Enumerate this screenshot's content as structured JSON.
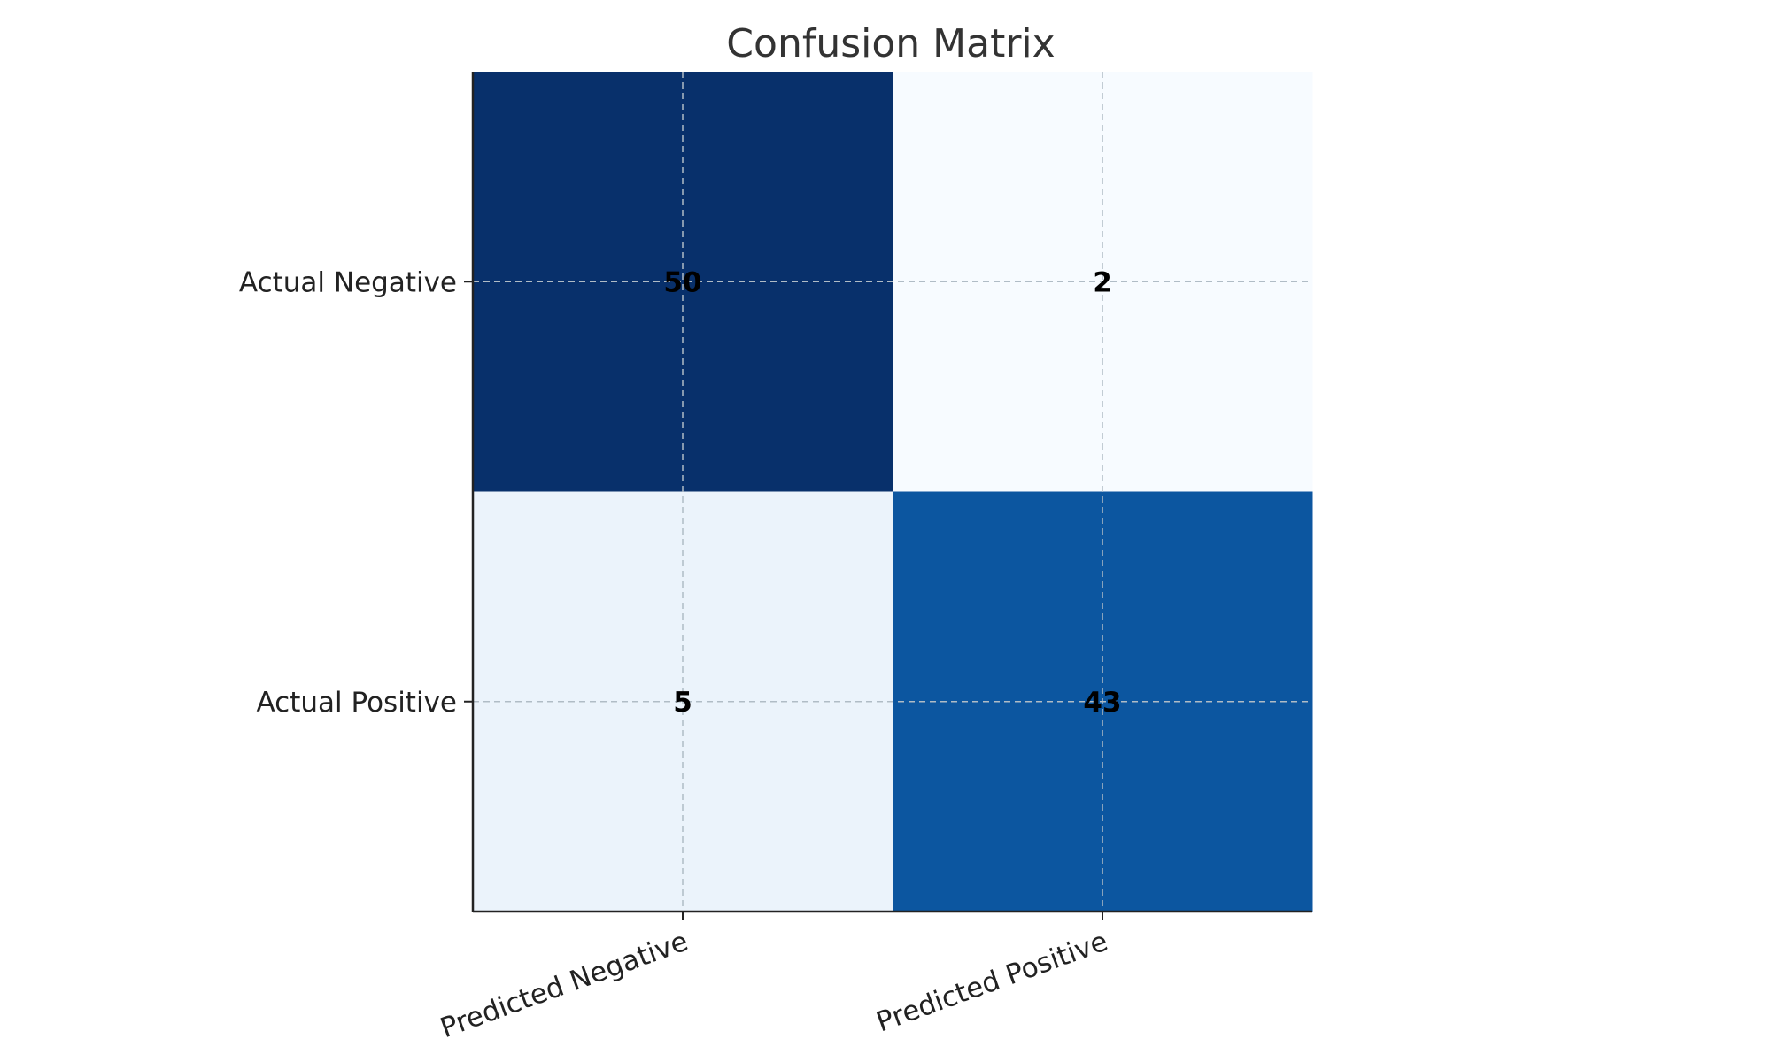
{
  "chart_data": {
    "type": "heatmap",
    "title": "Confusion Matrix",
    "x_categories": [
      "Predicted Negative",
      "Predicted Positive"
    ],
    "y_categories": [
      "Actual Negative",
      "Actual Positive"
    ],
    "values": [
      [
        50,
        2
      ],
      [
        5,
        43
      ]
    ],
    "colormap": "Blues",
    "colors": {
      "low": "#f7fbff",
      "mid_low": "#eaf1f9",
      "mid": "#0b559f",
      "high": "#08306b"
    },
    "grid": true,
    "colorbar": false,
    "x_tick_rotation_deg": 20
  }
}
